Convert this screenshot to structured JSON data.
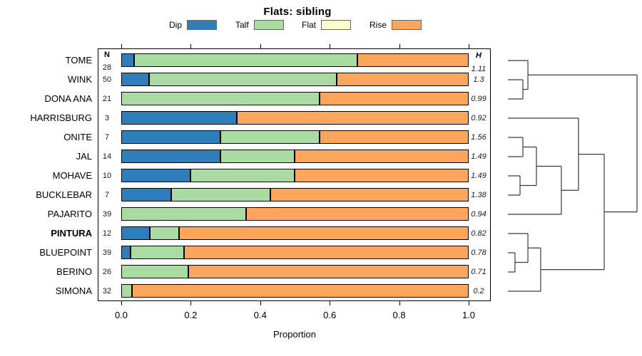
{
  "title": "Flats: sibling",
  "legend": [
    {
      "label": "Dip",
      "color": "#2E7EBC"
    },
    {
      "label": "Talf",
      "color": "#A9DBA2"
    },
    {
      "label": "Flat",
      "color": "#FDFDCB"
    },
    {
      "label": "Rise",
      "color": "#FBA55D"
    }
  ],
  "columns": {
    "n_header": "N",
    "h_header": "H"
  },
  "x_axis": {
    "label": "Proportion",
    "ticks": [
      "0.0",
      "0.2",
      "0.4",
      "0.6",
      "0.8",
      "1.0"
    ],
    "min": 0,
    "max": 1
  },
  "chart_data": {
    "type": "bar",
    "stacked": true,
    "orientation": "horizontal",
    "title": "Flats: sibling",
    "xlabel": "Proportion",
    "xlim": [
      0,
      1
    ],
    "series_names": [
      "Dip",
      "Talf",
      "Flat",
      "Rise"
    ],
    "categories": [
      "TOME",
      "WINK",
      "DONA ANA",
      "HARRISBURG",
      "ONITE",
      "JAL",
      "MOHAVE",
      "BUCKLEBAR",
      "PAJARITO",
      "PINTURA",
      "BLUEPOINT",
      "BERINO",
      "SIMONA"
    ],
    "rows": [
      {
        "name": "TOME",
        "n": 28,
        "h": "1.11",
        "bold": false,
        "values": {
          "Dip": 0.036,
          "Talf": 0.643,
          "Flat": 0,
          "Rise": 0.321
        }
      },
      {
        "name": "WINK",
        "n": 50,
        "h": "1.3",
        "bold": false,
        "values": {
          "Dip": 0.08,
          "Talf": 0.54,
          "Flat": 0,
          "Rise": 0.38
        }
      },
      {
        "name": "DONA ANA",
        "n": 21,
        "h": "0.99",
        "bold": false,
        "values": {
          "Dip": 0,
          "Talf": 0.571,
          "Flat": 0,
          "Rise": 0.429
        }
      },
      {
        "name": "HARRISBURG",
        "n": 3,
        "h": "0.92",
        "bold": false,
        "values": {
          "Dip": 0.333,
          "Talf": 0,
          "Flat": 0,
          "Rise": 0.667
        }
      },
      {
        "name": "ONITE",
        "n": 7,
        "h": "1.56",
        "bold": false,
        "values": {
          "Dip": 0.286,
          "Talf": 0.285,
          "Flat": 0,
          "Rise": 0.429
        }
      },
      {
        "name": "JAL",
        "n": 14,
        "h": "1.49",
        "bold": false,
        "values": {
          "Dip": 0.286,
          "Talf": 0.214,
          "Flat": 0,
          "Rise": 0.5
        }
      },
      {
        "name": "MOHAVE",
        "n": 10,
        "h": "1.49",
        "bold": false,
        "values": {
          "Dip": 0.2,
          "Talf": 0.3,
          "Flat": 0,
          "Rise": 0.5
        }
      },
      {
        "name": "BUCKLEBAR",
        "n": 7,
        "h": "1.38",
        "bold": false,
        "values": {
          "Dip": 0.143,
          "Talf": 0.286,
          "Flat": 0,
          "Rise": 0.571
        }
      },
      {
        "name": "PAJARITO",
        "n": 39,
        "h": "0.94",
        "bold": false,
        "values": {
          "Dip": 0,
          "Talf": 0.359,
          "Flat": 0,
          "Rise": 0.641
        }
      },
      {
        "name": "PINTURA",
        "n": 12,
        "h": "0.82",
        "bold": true,
        "values": {
          "Dip": 0.083,
          "Talf": 0.084,
          "Flat": 0,
          "Rise": 0.833
        }
      },
      {
        "name": "BLUEPOINT",
        "n": 39,
        "h": "0.78",
        "bold": false,
        "values": {
          "Dip": 0.026,
          "Talf": 0.154,
          "Flat": 0,
          "Rise": 0.82
        }
      },
      {
        "name": "BERINO",
        "n": 26,
        "h": "0.71",
        "bold": false,
        "values": {
          "Dip": 0,
          "Talf": 0.192,
          "Flat": 0,
          "Rise": 0.808
        }
      },
      {
        "name": "SIMONA",
        "n": 32,
        "h": "0.2",
        "bold": false,
        "values": {
          "Dip": 0,
          "Talf": 0.031,
          "Flat": 0,
          "Rise": 0.969
        }
      }
    ]
  },
  "dendrogram": {
    "merges": [
      {
        "id": "m1",
        "a": "WINK",
        "b": "DONA ANA",
        "d": 0.116
      },
      {
        "id": "m2",
        "a": "TOME",
        "b": "m1",
        "d": 0.155
      },
      {
        "id": "m3",
        "a": "ONITE",
        "b": "JAL",
        "d": 0.116
      },
      {
        "id": "m4",
        "a": "MOHAVE",
        "b": "BUCKLEBAR",
        "d": 0.094
      },
      {
        "id": "m5",
        "a": "m3",
        "b": "m4",
        "d": 0.221
      },
      {
        "id": "m6",
        "a": "m5",
        "b": "PAJARITO",
        "d": 0.414
      },
      {
        "id": "m7",
        "a": "HARRISBURG",
        "b": "m6",
        "d": 0.547
      },
      {
        "id": "m8",
        "a": "BLUEPOINT",
        "b": "BERINO",
        "d": 0.055
      },
      {
        "id": "m9",
        "a": "PINTURA",
        "b": "m8",
        "d": 0.155
      },
      {
        "id": "m10",
        "a": "m9",
        "b": "SIMONA",
        "d": 0.254
      },
      {
        "id": "m11",
        "a": "m7",
        "b": "m10",
        "d": 0.746
      },
      {
        "id": "m12",
        "a": "m2",
        "b": "m11",
        "d": 1.0
      }
    ]
  }
}
